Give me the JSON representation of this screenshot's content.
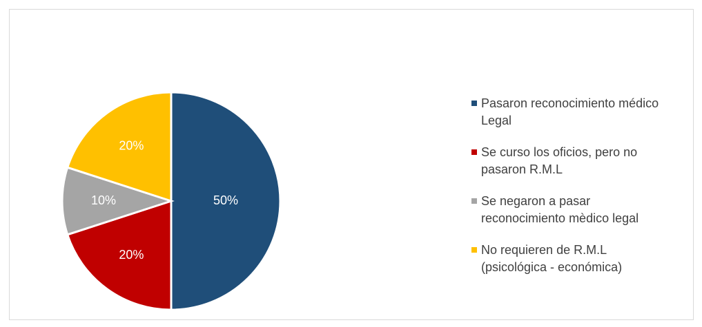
{
  "chart_data": {
    "type": "pie",
    "categories": [
      "Pasaron reconocimiento médico Legal",
      "Se curso los oficios, pero no pasaron R.M.L",
      "Se negaron a pasar reconocimiento mèdico legal",
      "No requieren de R.M.L (psicológica - económica)"
    ],
    "values": [
      50,
      20,
      10,
      20
    ],
    "value_labels": [
      "50%",
      "20%",
      "10%",
      "20%"
    ],
    "colors": [
      "#1f4e79",
      "#c00000",
      "#a5a5a5",
      "#ffc000"
    ],
    "legend": "right"
  }
}
